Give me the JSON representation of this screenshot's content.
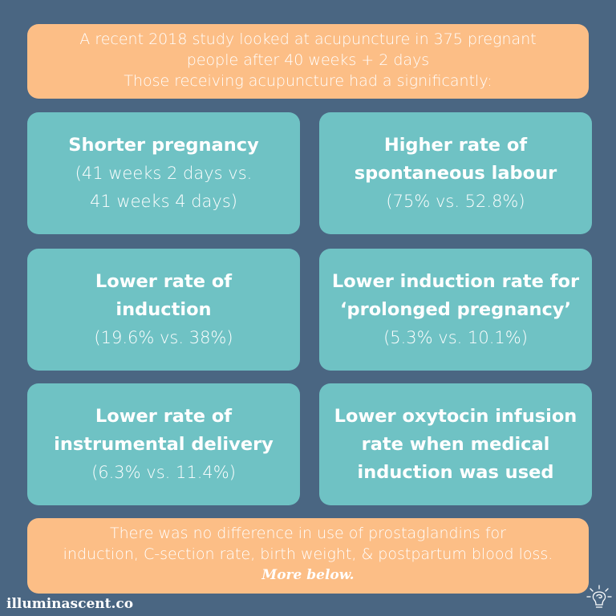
{
  "top_banner": {
    "line1": "A recent 2018 study looked at acupuncture in 375 pregnant",
    "line2": "people after 40 weeks + 2 days",
    "line3": "Those receiving acupuncture had a significantly:"
  },
  "cards": [
    {
      "heading_line1": "Shorter pregnancy",
      "heading_line2": "",
      "detail_line1": "(41 weeks 2 days vs.",
      "detail_line2": "41 weeks 4 days)"
    },
    {
      "heading_line1": "Higher rate of",
      "heading_line2": "spontaneous labour",
      "detail_line1": "(75% vs. 52.8%)",
      "detail_line2": ""
    },
    {
      "heading_line1": "Lower rate of",
      "heading_line2": "induction",
      "detail_line1": "(19.6% vs. 38%)",
      "detail_line2": ""
    },
    {
      "heading_line1": "Lower induction rate for",
      "heading_line2": "‘prolonged pregnancy’",
      "detail_line1": "(5.3% vs. 10.1%)",
      "detail_line2": ""
    },
    {
      "heading_line1": "Lower rate of",
      "heading_line2": "instrumental delivery",
      "detail_line1": "(6.3% vs. 11.4%)",
      "detail_line2": ""
    },
    {
      "heading_line1": "Lower oxytocin infusion",
      "heading_line2": "rate when medical",
      "heading_line3": "induction was used"
    }
  ],
  "bottom_banner": {
    "line1": "There was no difference in use of prostaglandins for",
    "line2": "induction, C-section rate, birth weight, & postpartum blood loss.",
    "more": "More below."
  },
  "brand": {
    "name": "illuminascent.co",
    "icon": "lightbulb-brain-icon"
  },
  "colors": {
    "background": "#4a6682",
    "banner": "#fcbe86",
    "card": "#6fc2c4",
    "text": "#ffffff"
  }
}
